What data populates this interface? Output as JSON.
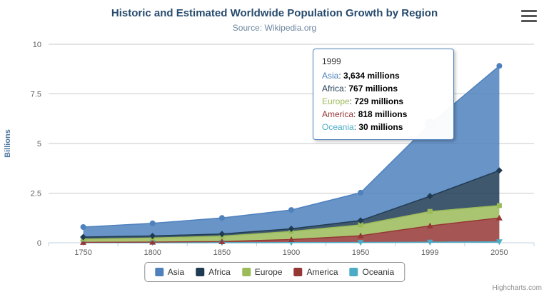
{
  "credits": "Highcharts.com",
  "chart_data": {
    "type": "area",
    "stacking": "normal",
    "title": "Historic and Estimated Worldwide Population Growth by Region",
    "subtitle": "Source: Wikipedia.org",
    "xlabel": "",
    "ylabel": "Billions",
    "unit": "millions",
    "ylim": [
      0,
      10
    ],
    "yticks": [
      0,
      2.5,
      5,
      7.5,
      10
    ],
    "grid": true,
    "legend_position": "bottom",
    "categories": [
      "1750",
      "1800",
      "1850",
      "1900",
      "1950",
      "1999",
      "2050"
    ],
    "series": [
      {
        "name": "Asia",
        "color": "#4F81BD",
        "marker": "circle",
        "values": [
          502,
          635,
          809,
          947,
          1402,
          3634,
          5268
        ]
      },
      {
        "name": "Africa",
        "color": "#1F3B53",
        "marker": "diamond",
        "values": [
          106,
          107,
          111,
          133,
          221,
          767,
          1766
        ]
      },
      {
        "name": "Europe",
        "color": "#9BBB59",
        "marker": "square",
        "values": [
          163,
          203,
          276,
          408,
          547,
          729,
          628
        ]
      },
      {
        "name": "America",
        "color": "#953735",
        "marker": "triangle",
        "values": [
          18,
          31,
          54,
          156,
          339,
          818,
          1201
        ]
      },
      {
        "name": "Oceania",
        "color": "#4BACC6",
        "marker": "triangle-down",
        "values": [
          2,
          2,
          2,
          6,
          13,
          30,
          46
        ]
      }
    ],
    "stack_order_bottom_to_top": [
      "Oceania",
      "America",
      "Europe",
      "Africa",
      "Asia"
    ],
    "hover_point": {
      "series": "Asia",
      "category": "1999"
    }
  },
  "tooltip": {
    "header": "1999",
    "rows": [
      {
        "name": "Asia",
        "value": "3,634 millions"
      },
      {
        "name": "Africa",
        "value": "767 millions"
      },
      {
        "name": "Europe",
        "value": "729 millions"
      },
      {
        "name": "America",
        "value": "818 millions"
      },
      {
        "name": "Oceania",
        "value": "30 millions"
      }
    ]
  },
  "legend": {
    "items": [
      "Asia",
      "Africa",
      "Europe",
      "America",
      "Oceania"
    ]
  }
}
